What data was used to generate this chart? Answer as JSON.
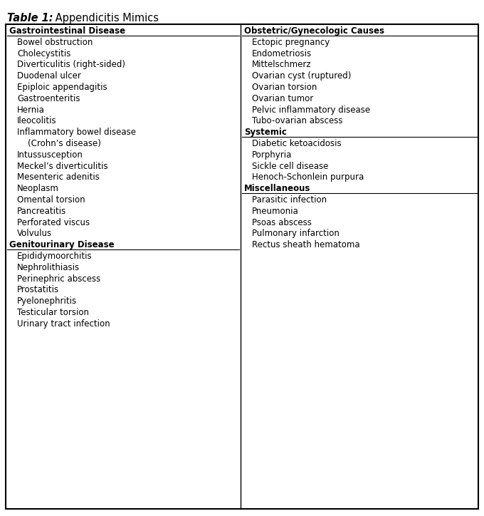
{
  "title_bold": "Table 1:",
  "title_regular": " Appendicitis Mimics",
  "left_col": {
    "sections": [
      {
        "header": "Gastrointestinal Disease",
        "items": [
          "Bowel obstruction",
          "Cholecystitis",
          "Diverticulitis (right-sided)",
          "Duodenal ulcer",
          "Epiploic appendagitis",
          "Gastroenteritis",
          "Hernia",
          "Ileocolitis",
          "Inflammatory bowel disease",
          "    (Crohn’s disease)",
          "Intussusception",
          "Meckel’s diverticulitis",
          "Mesenteric adenitis",
          "Neoplasm",
          "Omental torsion",
          "Pancreatitis",
          "Perforated viscus",
          "Volvulus"
        ]
      },
      {
        "header": "Genitourinary Disease",
        "items": [
          "Epididymoorchitis",
          "Nephrolithiasis",
          "Perinephric abscess",
          "Prostatitis",
          "Pyelonephritis",
          "Testicular torsion",
          "Urinary tract infection"
        ]
      }
    ]
  },
  "right_col": {
    "sections": [
      {
        "header": "Obstetric/Gynecologic Causes",
        "items": [
          "Ectopic pregnancy",
          "Endometriosis",
          "Mittelschmerz",
          "Ovarian cyst (ruptured)",
          "Ovarian torsion",
          "Ovarian tumor",
          "Pelvic inflammatory disease",
          "Tubo-ovarian abscess"
        ]
      },
      {
        "header": "Systemic",
        "items": [
          "Diabetic ketoacidosis",
          "Porphyria",
          "Sickle cell disease",
          "Henoch-Schonlein purpura"
        ]
      },
      {
        "header": "Miscellaneous",
        "items": [
          "Parasitic infection",
          "Pneumonia",
          "Psoas abscess",
          "Pulmonary infarction",
          "Rectus sheath hematoma"
        ]
      }
    ]
  },
  "bg_color": "#ffffff",
  "border_color": "#000000",
  "header_color": "#000000",
  "text_color": "#000000",
  "font_size": 8.5,
  "header_font_size": 8.5,
  "title_font_size": 10.5,
  "fig_width": 6.8,
  "fig_height": 7.24,
  "dpi": 100
}
